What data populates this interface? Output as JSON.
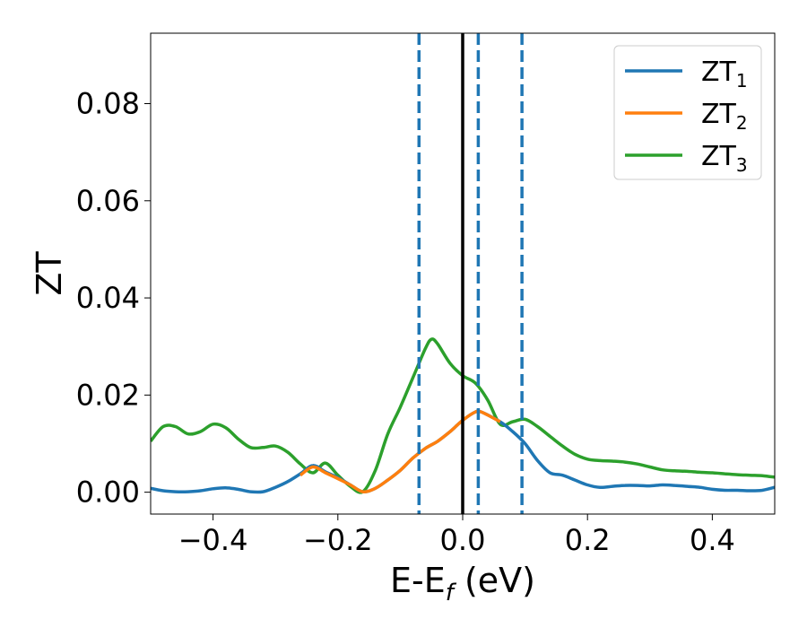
{
  "chart_data": {
    "type": "line",
    "xlabel": "E-E",
    "xlabel_sub": "f",
    "xlabel_unit": " (eV)",
    "ylabel": "ZT",
    "xlim": [
      -0.5,
      0.5
    ],
    "ylim": [
      -0.0045,
      0.0945
    ],
    "grid": false,
    "legend_position": "top-right",
    "xticks": [
      -0.4,
      -0.2,
      0.0,
      0.2,
      0.4
    ],
    "xtick_labels": [
      "−0.4",
      "−0.2",
      "0.0",
      "0.2",
      "0.4"
    ],
    "yticks": [
      0.0,
      0.02,
      0.04,
      0.06,
      0.08
    ],
    "ytick_labels": [
      "0.00",
      "0.02",
      "0.04",
      "0.06",
      "0.08"
    ],
    "reference_lines": {
      "solid": {
        "x": 0.0,
        "color": "#000000"
      },
      "dashed": {
        "x": [
          -0.07,
          0.025,
          0.095
        ],
        "color": "#1f77b4"
      }
    },
    "series": [
      {
        "name": "ZT",
        "sub": "1",
        "color": "#1f77b4",
        "x": [
          -0.5,
          -0.48,
          -0.46,
          -0.44,
          -0.42,
          -0.4,
          -0.38,
          -0.36,
          -0.34,
          -0.32,
          -0.3,
          -0.28,
          -0.26,
          -0.24,
          -0.22,
          -0.2,
          -0.18,
          -0.16,
          -0.14,
          -0.12,
          -0.1,
          -0.08,
          -0.06,
          -0.04,
          -0.02,
          0.0,
          0.02,
          0.03,
          0.06,
          0.08,
          0.1,
          0.12,
          0.14,
          0.16,
          0.18,
          0.2,
          0.22,
          0.24,
          0.26,
          0.28,
          0.3,
          0.32,
          0.34,
          0.36,
          0.38,
          0.4,
          0.42,
          0.44,
          0.46,
          0.48,
          0.5
        ],
        "y": [
          0.0008,
          0.0003,
          0.0001,
          0.0001,
          0.0003,
          0.0007,
          0.0009,
          0.0006,
          0.0001,
          0.0001,
          0.001,
          0.0022,
          0.0038,
          0.0055,
          0.0042,
          0.003,
          0.0015,
          0.0001,
          0.0008,
          0.0025,
          0.0045,
          0.007,
          0.009,
          0.0105,
          0.0125,
          0.0148,
          0.0165,
          0.0165,
          0.0145,
          0.0125,
          0.01,
          0.0065,
          0.004,
          0.0035,
          0.0025,
          0.0015,
          0.001,
          0.0012,
          0.0014,
          0.0014,
          0.0013,
          0.0015,
          0.0014,
          0.0012,
          0.001,
          0.0006,
          0.0004,
          0.0004,
          0.0003,
          0.0004,
          0.001
        ]
      },
      {
        "name": "ZT",
        "sub": "2",
        "color": "#ff7f0e",
        "x": [
          -0.26,
          -0.24,
          -0.22,
          -0.2,
          -0.18,
          -0.16,
          -0.14,
          -0.12,
          -0.1,
          -0.08,
          -0.06,
          -0.04,
          -0.02,
          0.0,
          0.02,
          0.03,
          0.06
        ],
        "y": [
          0.0035,
          0.0052,
          0.004,
          0.0028,
          0.0015,
          0.0001,
          0.0008,
          0.0025,
          0.0045,
          0.007,
          0.009,
          0.0105,
          0.0125,
          0.0148,
          0.0165,
          0.0165,
          0.0145
        ]
      },
      {
        "name": "ZT",
        "sub": "3",
        "color": "#2ca02c",
        "x": [
          -0.5,
          -0.48,
          -0.46,
          -0.44,
          -0.42,
          -0.4,
          -0.38,
          -0.36,
          -0.34,
          -0.32,
          -0.3,
          -0.28,
          -0.26,
          -0.24,
          -0.22,
          -0.2,
          -0.18,
          -0.16,
          -0.14,
          -0.12,
          -0.1,
          -0.08,
          -0.06,
          -0.05,
          -0.04,
          -0.02,
          0.0,
          0.02,
          0.04,
          0.06,
          0.08,
          0.1,
          0.12,
          0.14,
          0.16,
          0.18,
          0.2,
          0.22,
          0.24,
          0.26,
          0.28,
          0.3,
          0.32,
          0.34,
          0.36,
          0.38,
          0.4,
          0.42,
          0.44,
          0.46,
          0.48,
          0.5
        ],
        "y": [
          0.0105,
          0.0135,
          0.0135,
          0.012,
          0.0125,
          0.014,
          0.0133,
          0.011,
          0.0092,
          0.0092,
          0.0095,
          0.0082,
          0.0058,
          0.004,
          0.006,
          0.0035,
          0.0012,
          0.0001,
          0.0045,
          0.012,
          0.0175,
          0.0235,
          0.0295,
          0.0315,
          0.0305,
          0.0265,
          0.024,
          0.0225,
          0.019,
          0.014,
          0.0145,
          0.015,
          0.0135,
          0.0115,
          0.0095,
          0.0078,
          0.0068,
          0.0065,
          0.0064,
          0.0062,
          0.0058,
          0.0052,
          0.0046,
          0.0044,
          0.0043,
          0.0041,
          0.004,
          0.0038,
          0.0036,
          0.0035,
          0.0034,
          0.0031
        ]
      }
    ]
  }
}
